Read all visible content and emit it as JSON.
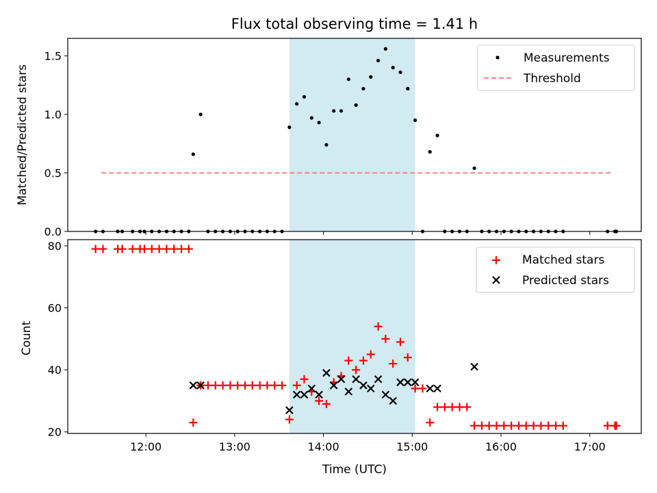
{
  "title": "Flux total observing time = 1.41 h",
  "colors": {
    "measurement": "#000000",
    "threshold": "#ff7f7f",
    "matched": "#ff0000",
    "predicted": "#000000",
    "shade": "#add8e6"
  },
  "chart_data": [
    {
      "type": "scatter",
      "ylabel": "Matched/Predicted stars",
      "xlim_hours": [
        11.12,
        17.58
      ],
      "ylim": [
        0,
        1.65
      ],
      "yticks": [
        0.0,
        0.5,
        1.0,
        1.5
      ],
      "ytick_labels": [
        "0.0",
        "0.5",
        "1.0",
        "1.5"
      ],
      "shaded_interval": [
        "13:37",
        "15:02"
      ],
      "legend": {
        "position": "top-right",
        "entries": [
          "Measurements",
          "Threshold"
        ]
      },
      "threshold": {
        "name": "Threshold",
        "value": 0.5,
        "x_range": [
          "11:30",
          "17:15"
        ]
      },
      "measurements": {
        "name": "Measurements",
        "x": [
          "11:26",
          "11:31",
          "11:41",
          "11:44",
          "11:51",
          "11:56",
          "11:59",
          "12:04",
          "12:09",
          "12:14",
          "12:19",
          "12:24",
          "12:29",
          "12:32",
          "12:37",
          "12:42",
          "12:47",
          "12:52",
          "12:57",
          "13:02",
          "13:07",
          "13:12",
          "13:17",
          "13:22",
          "13:27",
          "13:32",
          "13:37",
          "13:42",
          "13:47",
          "13:52",
          "13:57",
          "14:02",
          "14:07",
          "14:12",
          "14:17",
          "14:22",
          "14:27",
          "14:32",
          "14:37",
          "14:42",
          "14:47",
          "14:52",
          "14:57",
          "15:02",
          "15:07",
          "15:12",
          "15:17",
          "15:22",
          "15:27",
          "15:32",
          "15:37",
          "15:42",
          "15:47",
          "15:52",
          "15:57",
          "16:02",
          "16:07",
          "16:12",
          "16:17",
          "16:22",
          "16:27",
          "16:32",
          "16:37",
          "16:42",
          "17:12",
          "17:17",
          "17:18"
        ],
        "y": [
          0,
          0,
          0,
          0,
          0,
          0,
          0,
          0,
          0,
          0,
          0,
          0,
          0,
          0.66,
          1.0,
          0,
          0,
          0,
          0,
          0,
          0,
          0,
          0,
          0,
          0,
          0,
          0.89,
          1.09,
          1.15,
          0.97,
          0.93,
          0.74,
          1.03,
          1.03,
          1.3,
          1.08,
          1.22,
          1.32,
          1.46,
          1.56,
          1.4,
          1.36,
          1.22,
          0.95,
          0,
          0.68,
          0.82,
          0,
          0,
          0,
          0,
          0.54,
          0,
          0,
          0,
          0,
          0,
          0,
          0,
          0,
          0,
          0,
          0,
          0,
          0,
          0,
          0
        ]
      },
      "x_tick_labels": [
        "12:00",
        "13:00",
        "14:00",
        "15:00",
        "16:00",
        "17:00"
      ]
    },
    {
      "type": "scatter",
      "ylabel": "Count",
      "xlabel": "Time (UTC)",
      "xlim_hours": [
        11.12,
        17.58
      ],
      "ylim": [
        19.5,
        82
      ],
      "yticks": [
        20,
        40,
        60,
        80
      ],
      "ytick_labels": [
        "20",
        "40",
        "60",
        "80"
      ],
      "x_tick_labels": [
        "12:00",
        "13:00",
        "14:00",
        "15:00",
        "16:00",
        "17:00"
      ],
      "shaded_interval": [
        "13:37",
        "15:02"
      ],
      "legend": {
        "position": "top-right",
        "entries": [
          "Matched stars",
          "Predicted stars"
        ]
      },
      "series": [
        {
          "name": "Matched stars",
          "marker": "+",
          "x": [
            "11:26",
            "11:31",
            "11:41",
            "11:44",
            "11:51",
            "11:56",
            "11:59",
            "12:04",
            "12:09",
            "12:14",
            "12:19",
            "12:24",
            "12:29",
            "12:32",
            "12:37",
            "12:42",
            "12:47",
            "12:52",
            "12:57",
            "13:02",
            "13:07",
            "13:12",
            "13:17",
            "13:22",
            "13:27",
            "13:32",
            "13:37",
            "13:42",
            "13:47",
            "13:52",
            "13:57",
            "14:02",
            "14:07",
            "14:12",
            "14:17",
            "14:22",
            "14:27",
            "14:32",
            "14:37",
            "14:42",
            "14:47",
            "14:52",
            "14:57",
            "15:02",
            "15:07",
            "15:12",
            "15:17",
            "15:22",
            "15:27",
            "15:32",
            "15:37",
            "15:42",
            "15:47",
            "15:52",
            "15:57",
            "16:02",
            "16:07",
            "16:12",
            "16:17",
            "16:22",
            "16:27",
            "16:32",
            "16:37",
            "16:42",
            "17:12",
            "17:17",
            "17:18"
          ],
          "y": [
            79,
            79,
            79,
            79,
            79,
            79,
            79,
            79,
            79,
            79,
            79,
            79,
            79,
            23,
            35,
            35,
            35,
            35,
            35,
            35,
            35,
            35,
            35,
            35,
            35,
            35,
            24,
            35,
            37,
            33,
            30,
            29,
            36,
            38,
            43,
            40,
            43,
            45,
            54,
            50,
            42,
            49,
            44,
            34,
            34,
            23,
            28,
            28,
            28,
            28,
            28,
            22,
            22,
            22,
            22,
            22,
            22,
            22,
            22,
            22,
            22,
            22,
            22,
            22,
            22,
            22,
            22
          ]
        },
        {
          "name": "Predicted stars",
          "marker": "x",
          "x": [
            "12:32",
            "12:37",
            "13:37",
            "13:42",
            "13:47",
            "13:52",
            "13:57",
            "14:02",
            "14:07",
            "14:12",
            "14:17",
            "14:22",
            "14:27",
            "14:32",
            "14:37",
            "14:42",
            "14:47",
            "14:52",
            "14:57",
            "15:02",
            "15:12",
            "15:17",
            "15:42"
          ],
          "y": [
            35,
            35,
            27,
            32,
            32,
            34,
            32,
            39,
            35,
            37,
            33,
            37,
            35,
            34,
            37,
            32,
            30,
            36,
            36,
            36,
            34,
            34,
            41
          ]
        }
      ]
    }
  ]
}
